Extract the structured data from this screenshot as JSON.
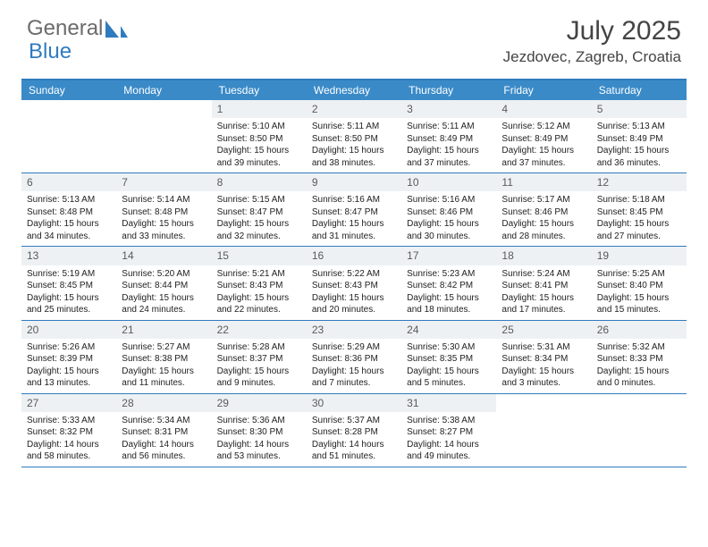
{
  "brand": {
    "part1": "General",
    "part2": "Blue"
  },
  "title": "July 2025",
  "location": "Jezdovec, Zagreb, Croatia",
  "colors": {
    "header_bar": "#3a8ac8",
    "accent": "#2f7bbf",
    "daynum_bg": "#eef1f3",
    "text": "#222222",
    "muted": "#6b6b6b"
  },
  "daysOfWeek": [
    "Sunday",
    "Monday",
    "Tuesday",
    "Wednesday",
    "Thursday",
    "Friday",
    "Saturday"
  ],
  "weeks": [
    [
      {
        "blank": true
      },
      {
        "blank": true
      },
      {
        "n": "1",
        "sr": "5:10 AM",
        "ss": "8:50 PM",
        "dl": "15 hours and 39 minutes."
      },
      {
        "n": "2",
        "sr": "5:11 AM",
        "ss": "8:50 PM",
        "dl": "15 hours and 38 minutes."
      },
      {
        "n": "3",
        "sr": "5:11 AM",
        "ss": "8:49 PM",
        "dl": "15 hours and 37 minutes."
      },
      {
        "n": "4",
        "sr": "5:12 AM",
        "ss": "8:49 PM",
        "dl": "15 hours and 37 minutes."
      },
      {
        "n": "5",
        "sr": "5:13 AM",
        "ss": "8:49 PM",
        "dl": "15 hours and 36 minutes."
      }
    ],
    [
      {
        "n": "6",
        "sr": "5:13 AM",
        "ss": "8:48 PM",
        "dl": "15 hours and 34 minutes."
      },
      {
        "n": "7",
        "sr": "5:14 AM",
        "ss": "8:48 PM",
        "dl": "15 hours and 33 minutes."
      },
      {
        "n": "8",
        "sr": "5:15 AM",
        "ss": "8:47 PM",
        "dl": "15 hours and 32 minutes."
      },
      {
        "n": "9",
        "sr": "5:16 AM",
        "ss": "8:47 PM",
        "dl": "15 hours and 31 minutes."
      },
      {
        "n": "10",
        "sr": "5:16 AM",
        "ss": "8:46 PM",
        "dl": "15 hours and 30 minutes."
      },
      {
        "n": "11",
        "sr": "5:17 AM",
        "ss": "8:46 PM",
        "dl": "15 hours and 28 minutes."
      },
      {
        "n": "12",
        "sr": "5:18 AM",
        "ss": "8:45 PM",
        "dl": "15 hours and 27 minutes."
      }
    ],
    [
      {
        "n": "13",
        "sr": "5:19 AM",
        "ss": "8:45 PM",
        "dl": "15 hours and 25 minutes."
      },
      {
        "n": "14",
        "sr": "5:20 AM",
        "ss": "8:44 PM",
        "dl": "15 hours and 24 minutes."
      },
      {
        "n": "15",
        "sr": "5:21 AM",
        "ss": "8:43 PM",
        "dl": "15 hours and 22 minutes."
      },
      {
        "n": "16",
        "sr": "5:22 AM",
        "ss": "8:43 PM",
        "dl": "15 hours and 20 minutes."
      },
      {
        "n": "17",
        "sr": "5:23 AM",
        "ss": "8:42 PM",
        "dl": "15 hours and 18 minutes."
      },
      {
        "n": "18",
        "sr": "5:24 AM",
        "ss": "8:41 PM",
        "dl": "15 hours and 17 minutes."
      },
      {
        "n": "19",
        "sr": "5:25 AM",
        "ss": "8:40 PM",
        "dl": "15 hours and 15 minutes."
      }
    ],
    [
      {
        "n": "20",
        "sr": "5:26 AM",
        "ss": "8:39 PM",
        "dl": "15 hours and 13 minutes."
      },
      {
        "n": "21",
        "sr": "5:27 AM",
        "ss": "8:38 PM",
        "dl": "15 hours and 11 minutes."
      },
      {
        "n": "22",
        "sr": "5:28 AM",
        "ss": "8:37 PM",
        "dl": "15 hours and 9 minutes."
      },
      {
        "n": "23",
        "sr": "5:29 AM",
        "ss": "8:36 PM",
        "dl": "15 hours and 7 minutes."
      },
      {
        "n": "24",
        "sr": "5:30 AM",
        "ss": "8:35 PM",
        "dl": "15 hours and 5 minutes."
      },
      {
        "n": "25",
        "sr": "5:31 AM",
        "ss": "8:34 PM",
        "dl": "15 hours and 3 minutes."
      },
      {
        "n": "26",
        "sr": "5:32 AM",
        "ss": "8:33 PM",
        "dl": "15 hours and 0 minutes."
      }
    ],
    [
      {
        "n": "27",
        "sr": "5:33 AM",
        "ss": "8:32 PM",
        "dl": "14 hours and 58 minutes."
      },
      {
        "n": "28",
        "sr": "5:34 AM",
        "ss": "8:31 PM",
        "dl": "14 hours and 56 minutes."
      },
      {
        "n": "29",
        "sr": "5:36 AM",
        "ss": "8:30 PM",
        "dl": "14 hours and 53 minutes."
      },
      {
        "n": "30",
        "sr": "5:37 AM",
        "ss": "8:28 PM",
        "dl": "14 hours and 51 minutes."
      },
      {
        "n": "31",
        "sr": "5:38 AM",
        "ss": "8:27 PM",
        "dl": "14 hours and 49 minutes."
      },
      {
        "blank": true
      },
      {
        "blank": true
      }
    ]
  ],
  "labels": {
    "sunrise": "Sunrise: ",
    "sunset": "Sunset: ",
    "daylight": "Daylight: "
  }
}
